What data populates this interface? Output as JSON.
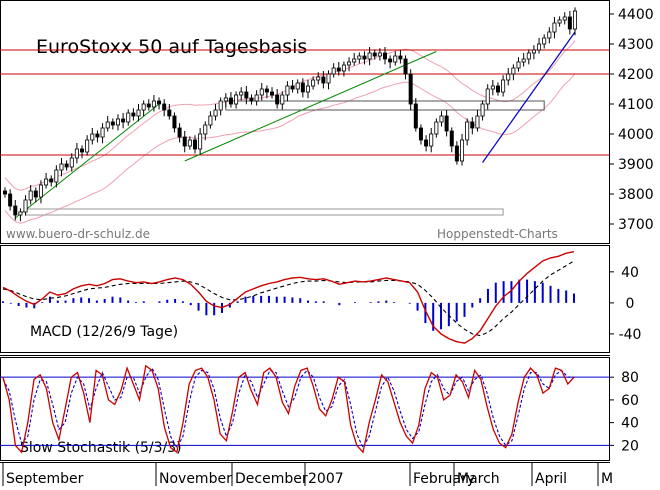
{
  "chart_data": [
    {
      "type": "candlestick",
      "title": "EuroStoxx 50 auf Tagesbasis",
      "watermark_left": "www.buero-dr-schulz.de",
      "watermark_right": "Hoppenstedt-Charts",
      "y_ticks": [
        3700,
        3800,
        3900,
        4000,
        4100,
        4200,
        4300,
        4400
      ],
      "ylim": [
        3640,
        4440
      ],
      "horizontal_lines": [
        4280,
        4200,
        3930
      ],
      "box_levels": [
        {
          "low": 4080,
          "high": 4110
        },
        {
          "low": 3730,
          "high": 3750
        }
      ],
      "closes": [
        3800,
        3760,
        3730,
        3740,
        3780,
        3810,
        3790,
        3830,
        3850,
        3840,
        3880,
        3900,
        3890,
        3920,
        3950,
        3940,
        3980,
        4000,
        3990,
        4020,
        4040,
        4030,
        4050,
        4040,
        4070,
        4060,
        4080,
        4100,
        4090,
        4110,
        4100,
        4080,
        4060,
        4020,
        3990,
        3960,
        3980,
        3950,
        4000,
        4030,
        4060,
        4080,
        4110,
        4120,
        4100,
        4130,
        4140,
        4120,
        4110,
        4130,
        4150,
        4140,
        4130,
        4100,
        4130,
        4160,
        4150,
        4170,
        4140,
        4160,
        4180,
        4190,
        4170,
        4200,
        4220,
        4210,
        4230,
        4240,
        4250,
        4260,
        4250,
        4270,
        4260,
        4270,
        4250,
        4240,
        4260,
        4250,
        4200,
        4100,
        4020,
        3980,
        3960,
        4000,
        4040,
        4060,
        4010,
        3960,
        3910,
        3980,
        4040,
        4020,
        4060,
        4100,
        4150,
        4160,
        4140,
        4180,
        4200,
        4220,
        4240,
        4250,
        4270,
        4280,
        4300,
        4320,
        4340,
        4370,
        4380,
        4390,
        4350,
        4410
      ]
    },
    {
      "type": "line",
      "title": "MACD (12/26/9 Tage)",
      "y_ticks": [
        40,
        0,
        -40
      ],
      "ylim": [
        -62,
        72
      ],
      "series": [
        {
          "values": [
            20,
            15,
            8,
            2,
            -2,
            5,
            14,
            10,
            12,
            18,
            22,
            24,
            22,
            25,
            30,
            31,
            28,
            26,
            27,
            25,
            27,
            30,
            32,
            30,
            24,
            14,
            2,
            -4,
            -6,
            -2,
            6,
            14,
            18,
            22,
            25,
            27,
            30,
            32,
            33,
            31,
            30,
            31,
            28,
            24,
            26,
            28,
            27,
            28,
            30,
            32,
            30,
            28,
            26,
            14,
            -10,
            -30,
            -40,
            -46,
            -50,
            -52,
            -46,
            -36,
            -20,
            -4,
            8,
            16,
            28,
            38,
            46,
            54,
            58,
            60,
            64,
            66
          ]
        },
        {
          "values": [
            18,
            16,
            12,
            8,
            5,
            4,
            6,
            7,
            9,
            12,
            15,
            18,
            19,
            20,
            22,
            24,
            25,
            25,
            25,
            25,
            25,
            26,
            27,
            28,
            27,
            24,
            18,
            12,
            7,
            4,
            4,
            6,
            9,
            13,
            16,
            19,
            22,
            25,
            27,
            28,
            28,
            29,
            28,
            27,
            26,
            27,
            27,
            27,
            28,
            29,
            29,
            28,
            27,
            24,
            16,
            6,
            -6,
            -16,
            -26,
            -34,
            -40,
            -42,
            -38,
            -30,
            -20,
            -12,
            -2,
            8,
            18,
            28,
            36,
            42,
            48,
            54
          ]
        },
        {
          "values": [
            2,
            -1,
            -4,
            -6,
            -7,
            1,
            8,
            3,
            3,
            6,
            7,
            6,
            3,
            5,
            8,
            7,
            3,
            1,
            2,
            0,
            2,
            4,
            5,
            2,
            -3,
            -10,
            -16,
            -16,
            -13,
            -6,
            2,
            8,
            9,
            9,
            9,
            8,
            8,
            7,
            6,
            3,
            2,
            2,
            0,
            -3,
            0,
            1,
            0,
            1,
            2,
            3,
            1,
            0,
            -1,
            -10,
            -26,
            -36,
            -34,
            -30,
            -24,
            -18,
            -6,
            6,
            18,
            26,
            28,
            28,
            30,
            30,
            28,
            26,
            22,
            18,
            16,
            12
          ]
        }
      ]
    },
    {
      "type": "line",
      "title": "Slow Stochastik (5/3/3)",
      "y_ticks": [
        80,
        60,
        40,
        20
      ],
      "ylim": [
        8,
        96
      ],
      "horizontal_lines": [
        80,
        20
      ],
      "series": [
        {
          "values": [
            80,
            60,
            20,
            14,
            40,
            78,
            82,
            70,
            40,
            25,
            52,
            80,
            84,
            66,
            40,
            86,
            82,
            60,
            56,
            68,
            88,
            74,
            60,
            90,
            86,
            70,
            36,
            18,
            14,
            40,
            74,
            86,
            88,
            80,
            60,
            30,
            24,
            50,
            80,
            84,
            68,
            56,
            84,
            88,
            80,
            58,
            48,
            72,
            86,
            88,
            72,
            52,
            46,
            60,
            80,
            76,
            38,
            20,
            14,
            40,
            60,
            82,
            76,
            58,
            40,
            28,
            22,
            38,
            70,
            84,
            80,
            60,
            64,
            82,
            76,
            62,
            86,
            78,
            54,
            34,
            22,
            18,
            30,
            58,
            80,
            88,
            82,
            66,
            70,
            88,
            86,
            74,
            80
          ]
        },
        {
          "values": [
            78,
            68,
            42,
            22,
            28,
            60,
            78,
            76,
            56,
            34,
            40,
            66,
            80,
            74,
            52,
            70,
            84,
            72,
            60,
            62,
            80,
            80,
            66,
            80,
            88,
            78,
            52,
            28,
            18,
            28,
            58,
            80,
            86,
            84,
            70,
            44,
            28,
            40,
            66,
            82,
            76,
            62,
            74,
            86,
            84,
            68,
            54,
            62,
            80,
            86,
            80,
            62,
            50,
            54,
            72,
            78,
            56,
            30,
            18,
            28,
            50,
            72,
            80,
            68,
            50,
            34,
            26,
            32,
            56,
            76,
            82,
            70,
            64,
            76,
            80,
            68,
            78,
            82,
            66,
            44,
            28,
            20,
            24,
            46,
            70,
            84,
            84,
            74,
            70,
            82,
            86,
            80,
            80
          ]
        }
      ]
    }
  ],
  "x_axis": {
    "months": [
      "September",
      "November",
      "December",
      "2007",
      "February",
      "March",
      "April",
      "M"
    ]
  }
}
